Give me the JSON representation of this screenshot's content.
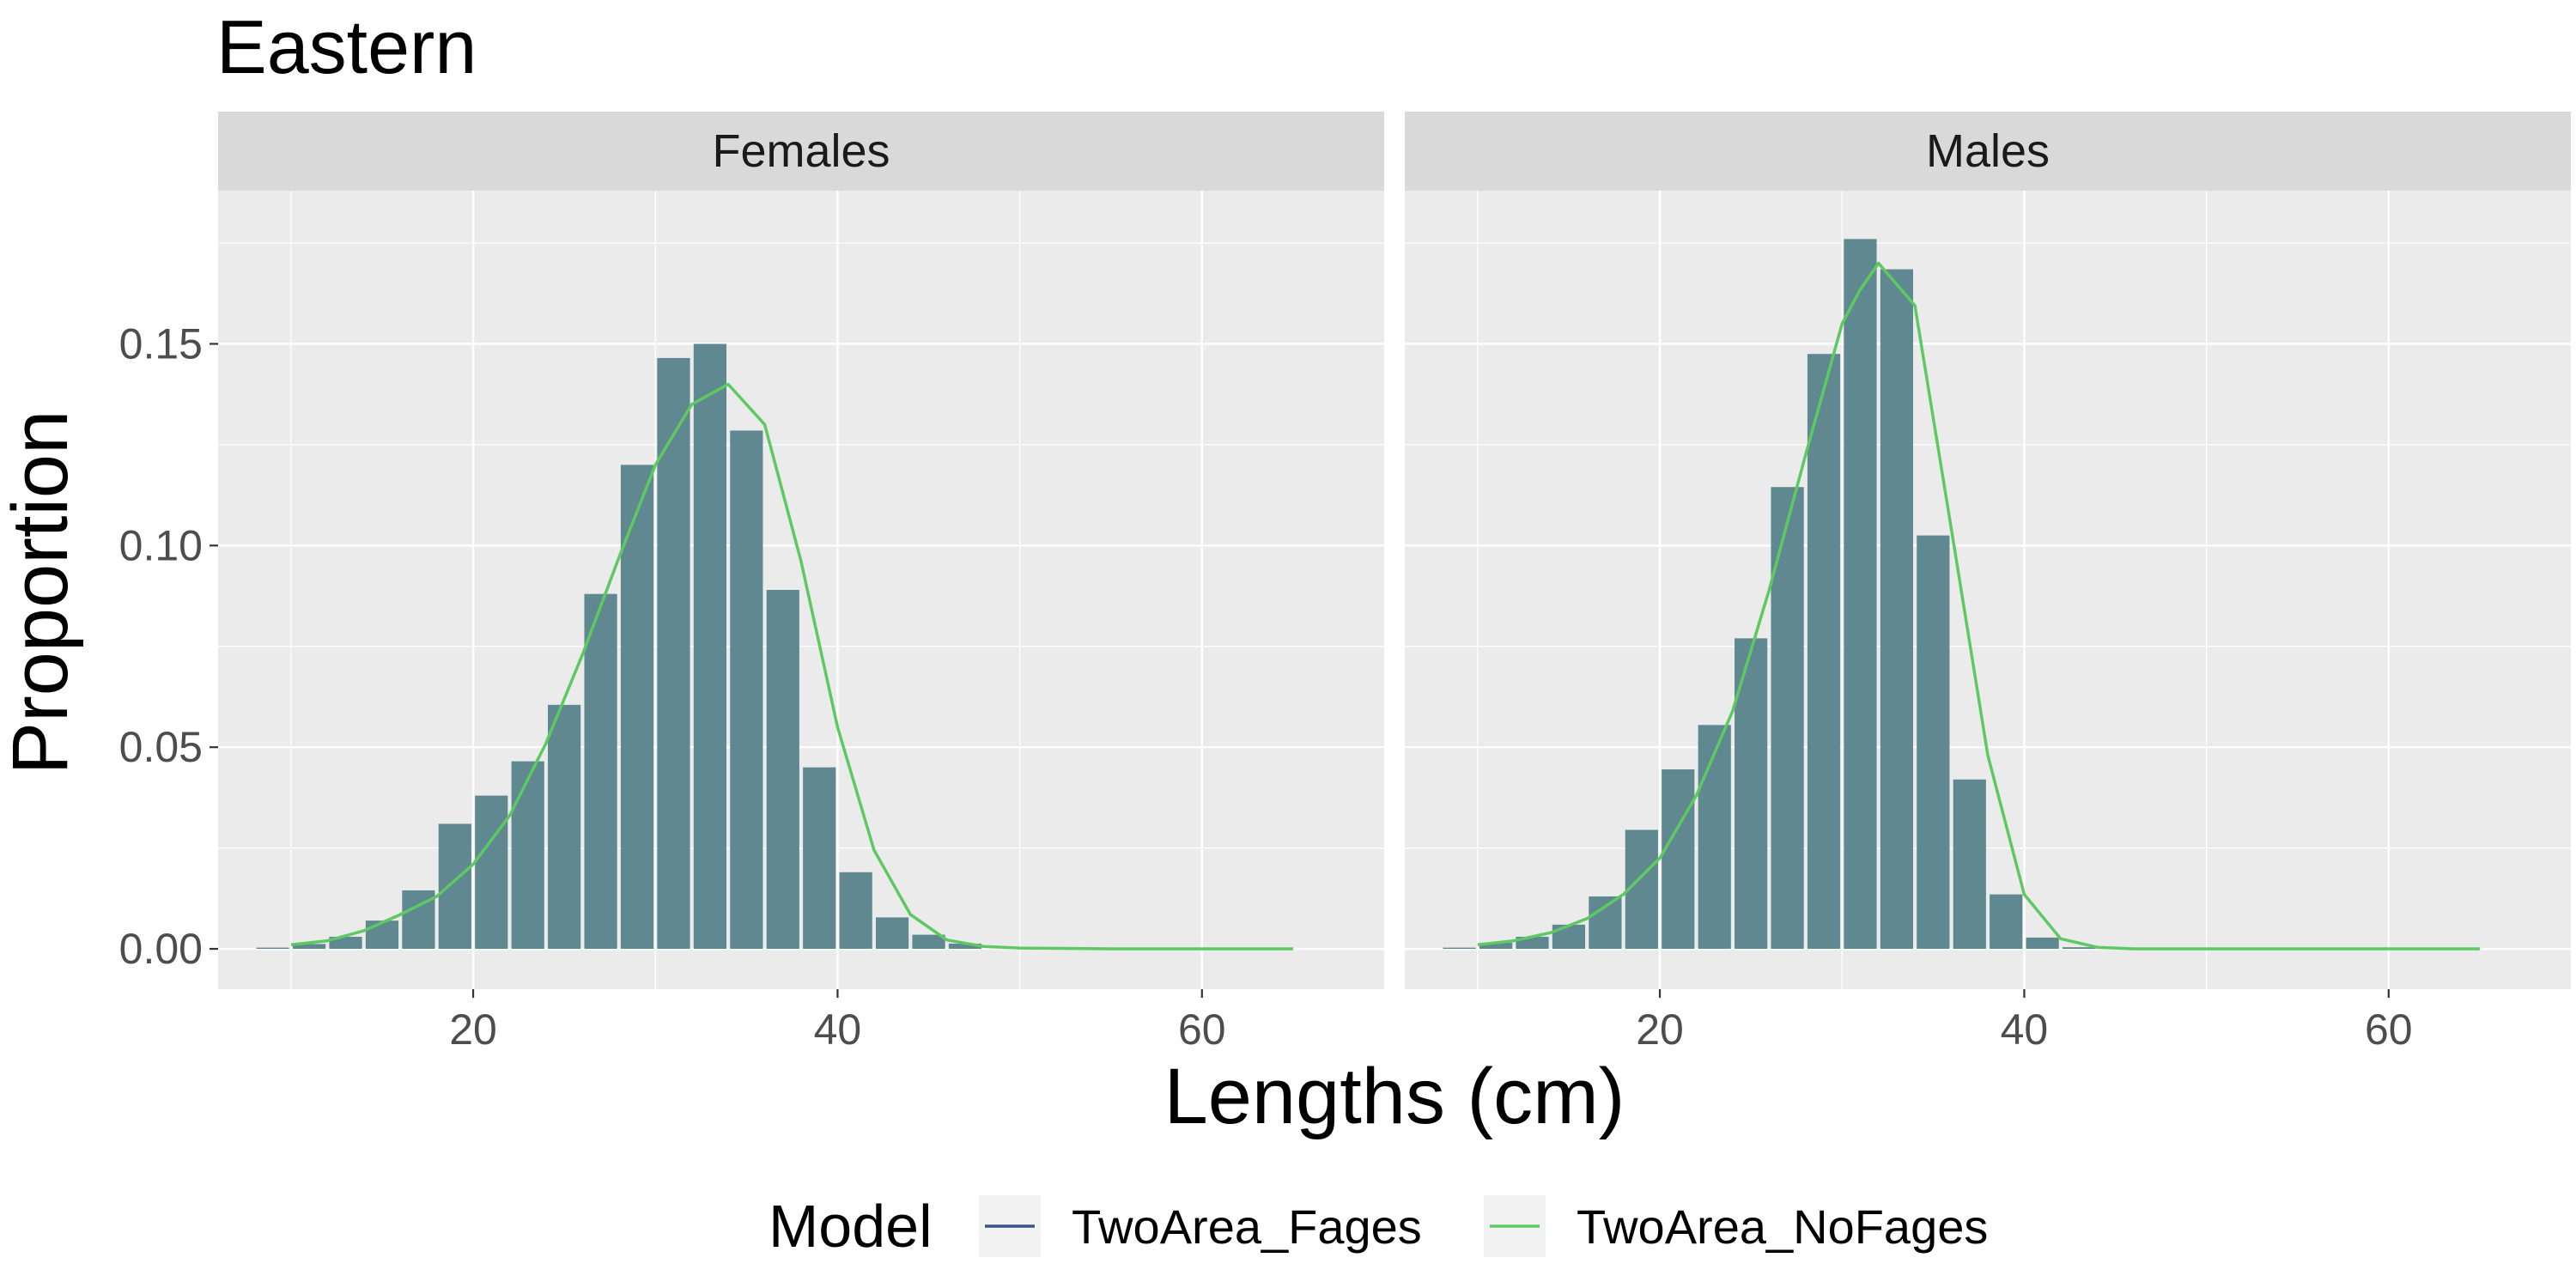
{
  "chart_data": {
    "type": "bar",
    "title": "Eastern",
    "xlabel": "Lengths (cm)",
    "ylabel": "Proportion",
    "xlim": [
      6,
      70
    ],
    "ylim": [
      -0.01,
      0.188
    ],
    "x_ticks": [
      20,
      40,
      60
    ],
    "y_ticks": [
      0.0,
      0.05,
      0.1,
      0.15
    ],
    "y_tick_labels": [
      "0.00",
      "0.05",
      "0.10",
      "0.15"
    ],
    "x_tick_labels": [
      "20",
      "40",
      "60"
    ],
    "bar_width": 1.8,
    "bar_color": "#5f8890",
    "panel_background": "#ebebeb",
    "strip_background": "#d9d9d9",
    "legend": {
      "title": "Model",
      "position": "bottom",
      "entries": [
        {
          "name": "TwoArea_Fages",
          "color": "#3b528b"
        },
        {
          "name": "TwoArea_NoFages",
          "color": "#5ec962"
        }
      ]
    },
    "panels": [
      {
        "strip": "Females",
        "bars": {
          "x": [
            9,
            11,
            13,
            15,
            17,
            19,
            21,
            23,
            25,
            27,
            29,
            31,
            33,
            35,
            37,
            39,
            41,
            43,
            45,
            47
          ],
          "values": [
            0.0003,
            0.0012,
            0.003,
            0.007,
            0.0145,
            0.031,
            0.038,
            0.0465,
            0.0605,
            0.088,
            0.12,
            0.1465,
            0.15,
            0.1285,
            0.089,
            0.045,
            0.019,
            0.0078,
            0.0035,
            0.0013
          ]
        },
        "series": [
          {
            "name": "TwoArea_NoFages",
            "x": [
              10,
              12,
              14,
              16,
              18,
              20,
              22,
              24,
              26,
              28,
              30,
              32,
              33,
              34,
              36,
              38,
              40,
              42,
              44,
              46,
              48,
              50,
              55,
              60,
              65
            ],
            "values": [
              0.001,
              0.002,
              0.0045,
              0.0085,
              0.013,
              0.021,
              0.033,
              0.051,
              0.073,
              0.097,
              0.12,
              0.135,
              0.1375,
              0.14,
              0.13,
              0.096,
              0.055,
              0.0245,
              0.0085,
              0.0022,
              0.0006,
              0.0002,
              0.0,
              0.0,
              0.0
            ]
          }
        ]
      },
      {
        "strip": "Males",
        "bars": {
          "x": [
            9,
            11,
            13,
            15,
            17,
            19,
            21,
            23,
            25,
            27,
            29,
            31,
            33,
            35,
            37,
            39,
            41,
            43
          ],
          "values": [
            0.0003,
            0.0015,
            0.003,
            0.006,
            0.013,
            0.0295,
            0.0445,
            0.0555,
            0.077,
            0.1145,
            0.1475,
            0.176,
            0.1685,
            0.1025,
            0.042,
            0.0135,
            0.0028,
            0.0004
          ]
        },
        "series": [
          {
            "name": "TwoArea_NoFages",
            "x": [
              10,
              12,
              14,
              16,
              18,
              20,
              22,
              24,
              26,
              28,
              30,
              31,
              32,
              34,
              36,
              38,
              40,
              42,
              44,
              46,
              50,
              55,
              60,
              65
            ],
            "values": [
              0.001,
              0.002,
              0.004,
              0.0075,
              0.0135,
              0.0225,
              0.038,
              0.059,
              0.089,
              0.1225,
              0.155,
              0.1635,
              0.17,
              0.1595,
              0.104,
              0.048,
              0.0135,
              0.0025,
              0.0004,
              0.0,
              0.0,
              0.0,
              0.0,
              0.0
            ]
          }
        ]
      }
    ]
  }
}
